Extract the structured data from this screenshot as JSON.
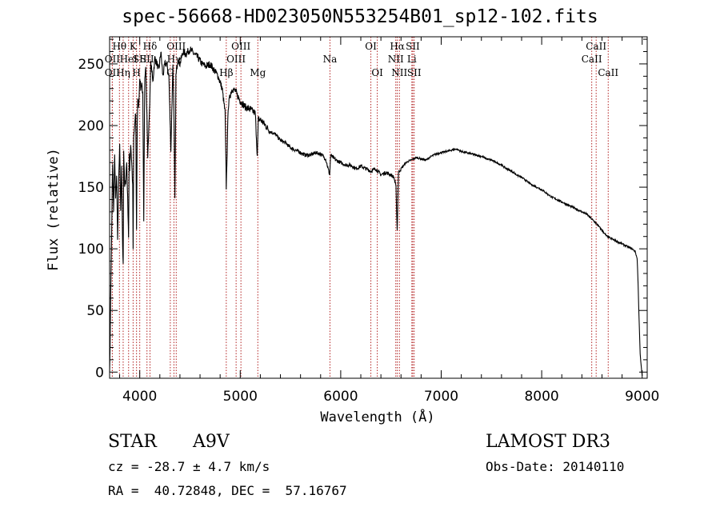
{
  "title": "spec-56668-HD023050N553254B01_sp12-102.fits",
  "info": {
    "object_class": "STAR",
    "subclass": "A9V",
    "survey": "LAMOST DR3",
    "redshift": "cz = -28.7 ± 4.7 km/s",
    "obs_date": "Obs-Date: 20140110",
    "coordinates": "RA =  40.72848, DEC =  57.16767"
  },
  "chart_data": {
    "type": "line",
    "title": "spec-56668-HD023050N553254B01_sp12-102.fits",
    "xlabel": "Wavelength (Å)",
    "ylabel": "Flux (relative)",
    "xlim": [
      3700,
      9050
    ],
    "ylim": [
      -5,
      272
    ],
    "xticks": [
      4000,
      5000,
      6000,
      7000,
      8000,
      9000
    ],
    "yticks": [
      0,
      50,
      100,
      150,
      200,
      250
    ],
    "line_color": "#000000",
    "marker_color": "#b22222",
    "series": [
      {
        "name": "flux",
        "x": [
          3700,
          3705,
          3710,
          3720,
          3730,
          3740,
          3750,
          3760,
          3770,
          3780,
          3790,
          3800,
          3810,
          3820,
          3830,
          3835,
          3840,
          3850,
          3860,
          3870,
          3880,
          3889,
          3895,
          3900,
          3910,
          3920,
          3930,
          3934,
          3940,
          3950,
          3960,
          3968,
          3975,
          3980,
          3990,
          4000,
          4010,
          4020,
          4030,
          4040,
          4050,
          4060,
          4080,
          4100,
          4110,
          4120,
          4130,
          4150,
          4170,
          4190,
          4210,
          4230,
          4250,
          4270,
          4290,
          4310,
          4330,
          4340,
          4350,
          4360,
          4380,
          4400,
          4430,
          4460,
          4500,
          4540,
          4580,
          4620,
          4660,
          4700,
          4740,
          4780,
          4820,
          4850,
          4861,
          4870,
          4880,
          4900,
          4920,
          4950,
          5000,
          5050,
          5100,
          5150,
          5170,
          5180,
          5200,
          5250,
          5300,
          5350,
          5400,
          5450,
          5500,
          5550,
          5600,
          5650,
          5700,
          5750,
          5800,
          5850,
          5890,
          5900,
          5950,
          6000,
          6050,
          6100,
          6150,
          6200,
          6250,
          6300,
          6350,
          6400,
          6450,
          6500,
          6530,
          6550,
          6562,
          6575,
          6600,
          6650,
          6700,
          6750,
          6800,
          6850,
          6900,
          6950,
          7000,
          7050,
          7100,
          7150,
          7200,
          7250,
          7300,
          7350,
          7400,
          7450,
          7500,
          7550,
          7600,
          7650,
          7700,
          7750,
          7800,
          7850,
          7900,
          7950,
          8000,
          8050,
          8100,
          8150,
          8200,
          8250,
          8300,
          8350,
          8400,
          8450,
          8500,
          8550,
          8600,
          8650,
          8700,
          8750,
          8800,
          8850,
          8900,
          8930,
          8950,
          8960,
          8970,
          8980,
          8990,
          9000
        ],
        "y": [
          0,
          20,
          60,
          110,
          170,
          130,
          175,
          140,
          160,
          110,
          150,
          185,
          130,
          165,
          100,
          90,
          180,
          150,
          155,
          170,
          140,
          110,
          175,
          165,
          185,
          170,
          150,
          100,
          190,
          200,
          210,
          115,
          200,
          220,
          215,
          240,
          230,
          235,
          225,
          120,
          240,
          250,
          175,
          220,
          250,
          245,
          235,
          255,
          250,
          245,
          260,
          240,
          250,
          250,
          240,
          180,
          250,
          210,
          140,
          240,
          255,
          250,
          260,
          258,
          262,
          258,
          255,
          250,
          248,
          250,
          245,
          240,
          230,
          210,
          150,
          180,
          215,
          225,
          230,
          228,
          220,
          215,
          213,
          210,
          175,
          205,
          205,
          200,
          195,
          193,
          188,
          186,
          182,
          180,
          178,
          176,
          176,
          178,
          177,
          173,
          160,
          176,
          172,
          170,
          168,
          168,
          165,
          167,
          165,
          163,
          165,
          160,
          162,
          160,
          158,
          150,
          115,
          162,
          165,
          170,
          172,
          174,
          173,
          172,
          175,
          177,
          178,
          179,
          180,
          181,
          179,
          178,
          177,
          176,
          175,
          173,
          172,
          170,
          168,
          165,
          163,
          160,
          158,
          155,
          152,
          150,
          148,
          145,
          142,
          140,
          138,
          136,
          134,
          132,
          130,
          128,
          124,
          120,
          115,
          110,
          108,
          106,
          104,
          102,
          100,
          98,
          92,
          70,
          40,
          15,
          5,
          -3
        ]
      }
    ],
    "annotations": [
      {
        "label": "Hθ",
        "x": 3798,
        "row": 1
      },
      {
        "label": "OII",
        "x": 3727,
        "row": 2
      },
      {
        "label": "OII",
        "x": 3727,
        "row": 3
      },
      {
        "label": "Hη",
        "x": 3835,
        "row": 3
      },
      {
        "label": "K",
        "x": 3934,
        "row": 1
      },
      {
        "label": "HeI",
        "x": 3889,
        "row": 2
      },
      {
        "label": "SII",
        "x": 4000,
        "row": 2
      },
      {
        "label": "H",
        "x": 3968,
        "row": 3
      },
      {
        "label": "Hδ",
        "x": 4102,
        "row": 1
      },
      {
        "label": "SII",
        "x": 4072,
        "row": 2
      },
      {
        "label": "OIII",
        "x": 4363,
        "row": 1
      },
      {
        "label": "Hγ",
        "x": 4340,
        "row": 2
      },
      {
        "label": "G",
        "x": 4304,
        "row": 3
      },
      {
        "label": "OIII",
        "x": 5007,
        "row": 1
      },
      {
        "label": "OIII",
        "x": 4959,
        "row": 2
      },
      {
        "label": "Hβ",
        "x": 4861,
        "row": 3
      },
      {
        "label": "Mg",
        "x": 5175,
        "row": 3
      },
      {
        "label": "Na",
        "x": 5893,
        "row": 2
      },
      {
        "label": "OI",
        "x": 6300,
        "row": 1
      },
      {
        "label": "OI",
        "x": 6364,
        "row": 3
      },
      {
        "label": "Hα",
        "x": 6563,
        "row": 1
      },
      {
        "label": "NII",
        "x": 6548,
        "row": 2
      },
      {
        "label": "NII",
        "x": 6584,
        "row": 3
      },
      {
        "label": "SII",
        "x": 6717,
        "row": 1
      },
      {
        "label": "Li",
        "x": 6708,
        "row": 2
      },
      {
        "label": "SII",
        "x": 6731,
        "row": 3
      },
      {
        "label": "CaII",
        "x": 8542,
        "row": 1
      },
      {
        "label": "CaII",
        "x": 8498,
        "row": 2
      },
      {
        "label": "CaII",
        "x": 8662,
        "row": 3
      }
    ]
  }
}
